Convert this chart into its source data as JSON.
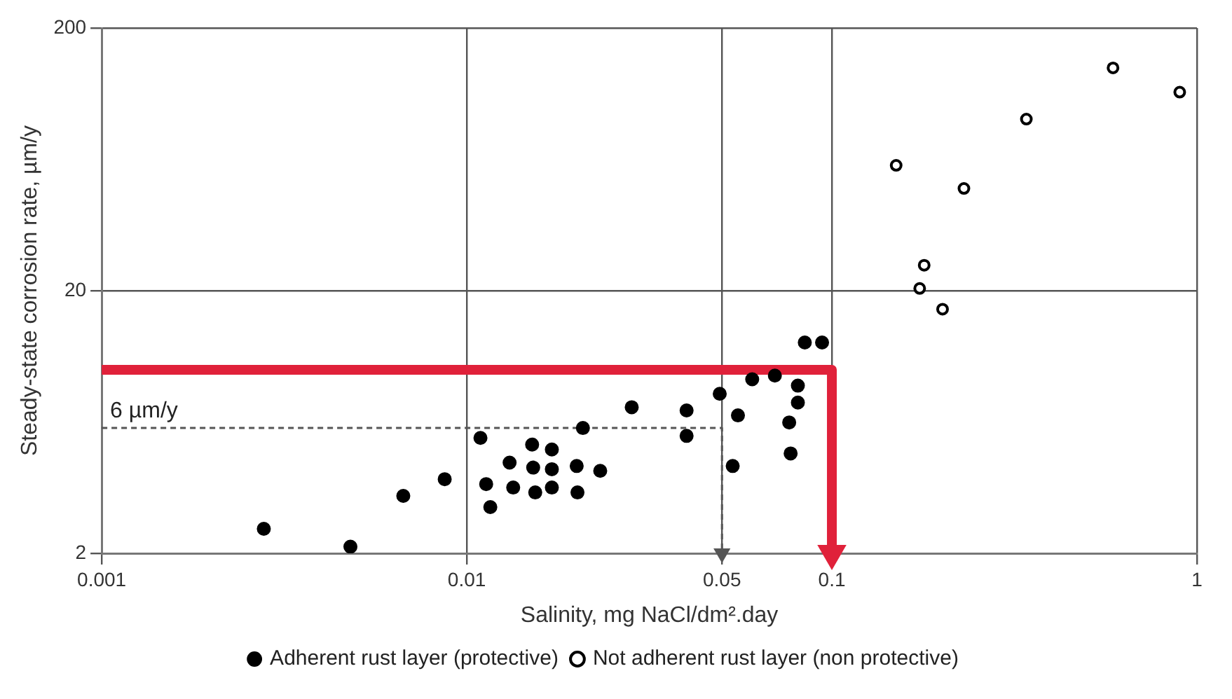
{
  "chart_data": {
    "type": "scatter",
    "xlabel": "Salinity, mg NaCl/dm².day",
    "ylabel": "Steady-state corrosion rate, µm/y",
    "log": "xy",
    "xlim": [
      0.001,
      1
    ],
    "ylim": [
      2,
      200
    ],
    "xticks": [
      0.001,
      0.01,
      0.05,
      0.1,
      1
    ],
    "yticks": [
      2,
      20,
      200
    ],
    "grid": true,
    "legend": "bottom",
    "marker": "circle",
    "series": [
      {
        "name": "Adherent rust layer (protective)",
        "color": "#000000",
        "x": [
          0.00278,
          0.0048,
          0.0067,
          0.0087,
          0.0109,
          0.0113,
          0.0116,
          0.0131,
          0.0134,
          0.0151,
          0.0152,
          0.0154,
          0.0171,
          0.0171,
          0.0171,
          0.02,
          0.0201,
          0.0208,
          0.0232,
          0.0283,
          0.04,
          0.04,
          0.0493,
          0.0553,
          0.0535,
          0.0605,
          0.0698,
          0.0807,
          0.0807,
          0.0764,
          0.0771,
          0.0843,
          0.094
        ],
        "values": [
          2.48,
          2.12,
          3.31,
          3.83,
          5.5,
          3.67,
          3.0,
          4.43,
          3.56,
          5.19,
          4.24,
          3.41,
          4.97,
          4.18,
          3.56,
          4.3,
          3.41,
          6.0,
          4.12,
          7.2,
          7.0,
          5.6,
          8.1,
          6.7,
          4.3,
          9.2,
          9.5,
          8.7,
          7.5,
          6.3,
          4.8,
          12.7,
          12.7
        ]
      },
      {
        "name": "Not adherent rust layer (non protective)",
        "color": "#000000",
        "x": [
          0.15,
          0.23,
          0.179,
          0.174,
          0.201,
          0.341,
          0.589,
          0.897
        ],
        "values": [
          60,
          49,
          25,
          20.4,
          17,
          90,
          141,
          114
        ]
      },
      {
        "type": "line",
        "marker": "none",
        "color": "#e0213a",
        "x": [
          0.001,
          0.1,
          0.1
        ],
        "values": [
          10,
          10,
          2
        ]
      },
      {
        "type": "line",
        "marker": "none",
        "color": "#555555",
        "line_style": "dashed",
        "x": [
          0.001,
          0.05,
          0.05
        ],
        "values": [
          6,
          6,
          2
        ]
      }
    ],
    "annotations": [
      {
        "text": "6 µm/y",
        "x": 0.001,
        "y": 6
      }
    ]
  }
}
